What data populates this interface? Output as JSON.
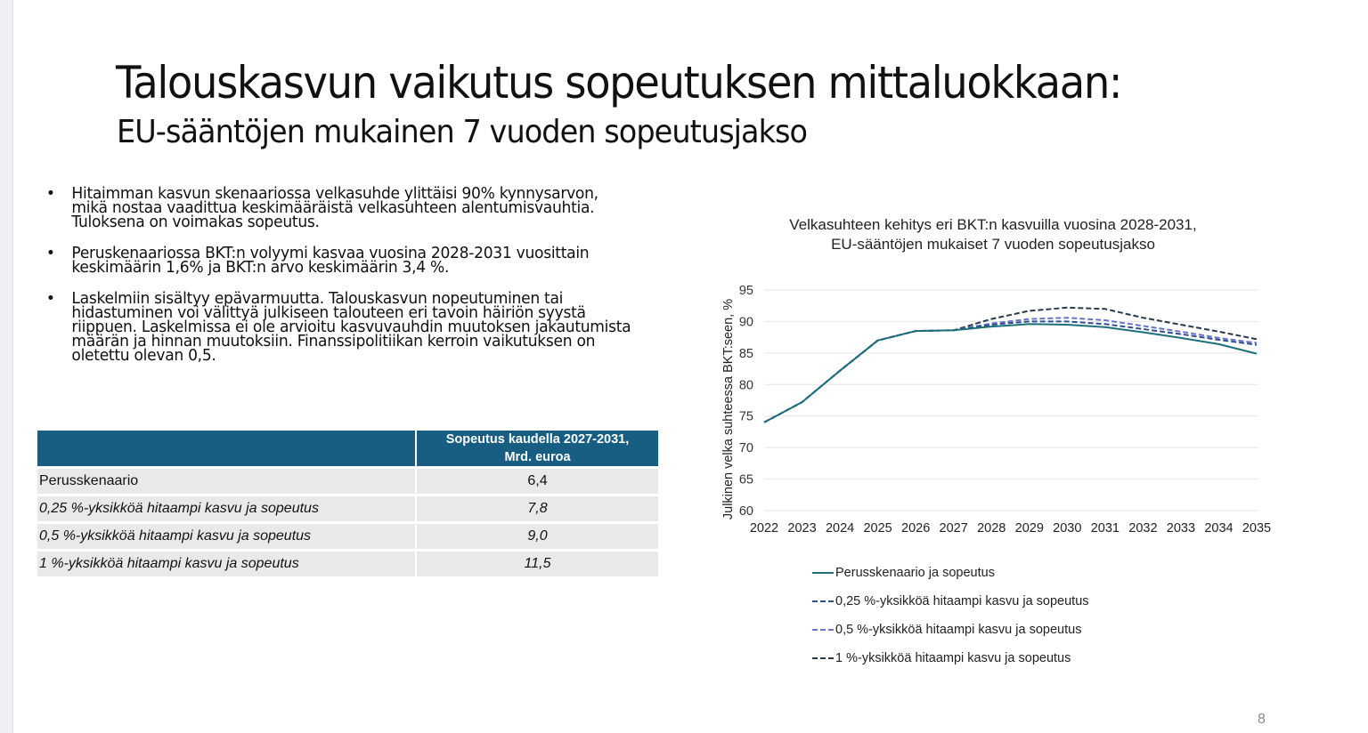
{
  "slide": {
    "title": "Talouskasvun vaikutus sopeutuksen mittaluokkaan:",
    "subtitle": "EU-sääntöjen mukainen 7 vuoden sopeutusjakso",
    "page_number": "8"
  },
  "bullets": [
    {
      "lines": [
        "Hitaimman kasvun skenaariossa velkasuhde ylittäisi 90% kynnysarvon,",
        "mikä nostaa vaadittua keskimääräistä velkasuhteen alentumisvauhtia.",
        "Tuloksena on voimakas sopeutus."
      ]
    },
    {
      "lines": [
        "Peruskenaariossa BKT:n volyymi kasvaa vuosina 2028-2031 vuosittain",
        "keskimäärin 1,6% ja BKT:n arvo keskimäärin 3,4 %."
      ]
    },
    {
      "lines": [
        "Laskelmiin sisältyy epävarmuutta. Talouskasvun nopeutuminen tai",
        "hidastuminen voi välittyä julkiseen talouteen eri tavoin häiriön syystä",
        "riippuen. Laskelmissa ei ole arvioitu kasvuvauhdin muutoksen jakautumista",
        "määrän ja hinnan muutoksiin. Finanssipolitiikan kerroin vaikutuksen on",
        "oletettu olevan 0,5."
      ]
    }
  ],
  "table": {
    "header": [
      "",
      "Sopeutus kaudella 2027-2031,",
      "Mrd. euroa"
    ],
    "rows": [
      {
        "label": "Perusskenaario",
        "value": "6,4",
        "italic": false
      },
      {
        "label": "0,25 %-yksikköä hitaampi kasvu ja sopeutus",
        "value": "7,8",
        "italic": true
      },
      {
        "label": "0,5 %-yksikköä hitaampi kasvu ja sopeutus",
        "value": "9,0",
        "italic": true
      },
      {
        "label": "1 %-yksikköä hitaampi kasvu ja sopeutus",
        "value": "11,5",
        "italic": true
      }
    ],
    "header_color": "#175e82",
    "row_color": "#e8e9eb"
  },
  "chart_data": {
    "type": "line",
    "title": "Velkasuhteen kehitys eri BKT:n kasvuilla vuosina 2028-2031, EU-sääntöjen mukaiset 7 vuoden sopeutusjakso",
    "title_lines": [
      "Velkasuhteen kehitys eri BKT:n kasvuilla vuosina 2028-2031,",
      "EU-sääntöjen mukaiset 7 vuoden sopeutusjakso"
    ],
    "xlabel": "",
    "ylabel": "Julkinen velka suhteessa BKT:seen, %",
    "ylim": [
      60,
      95
    ],
    "yticks": [
      60,
      65,
      70,
      75,
      80,
      85,
      90,
      95
    ],
    "grid": true,
    "legend_position": "bottom",
    "x": [
      2022,
      2023,
      2024,
      2025,
      2026,
      2027,
      2028,
      2029,
      2030,
      2031,
      2032,
      2033,
      2034,
      2035
    ],
    "series": [
      {
        "name": "Perusskenaario ja sopeutus",
        "style": "solid",
        "color": "#1f6f7a",
        "values": [
          74.0,
          77.2,
          82.2,
          87.0,
          88.5,
          88.6,
          89.2,
          89.6,
          89.5,
          89.1,
          88.3,
          87.4,
          86.4,
          84.9
        ]
      },
      {
        "name": "0,25 %-yksikköä hitaampi kasvu ja sopeutus",
        "style": "dashed",
        "color": "#2f4f8f",
        "values": [
          74.0,
          77.2,
          82.2,
          87.0,
          88.5,
          88.6,
          89.5,
          90.0,
          90.0,
          89.6,
          88.8,
          88.0,
          87.1,
          86.3
        ]
      },
      {
        "name": "0,5 %-yksikköä hitaampi kasvu ja sopeutus",
        "style": "dashed",
        "color": "#6a74c8",
        "values": [
          74.0,
          77.2,
          82.2,
          87.0,
          88.5,
          88.6,
          89.7,
          90.4,
          90.6,
          90.2,
          89.3,
          88.4,
          87.4,
          86.6
        ]
      },
      {
        "name": "1 %-yksikköä hitaampi kasvu ja sopeutus",
        "style": "dashed",
        "color": "#2b3a4a",
        "values": [
          74.0,
          77.2,
          82.2,
          87.0,
          88.5,
          88.6,
          90.4,
          91.7,
          92.2,
          92.0,
          90.6,
          89.5,
          88.4,
          87.2
        ]
      }
    ]
  }
}
